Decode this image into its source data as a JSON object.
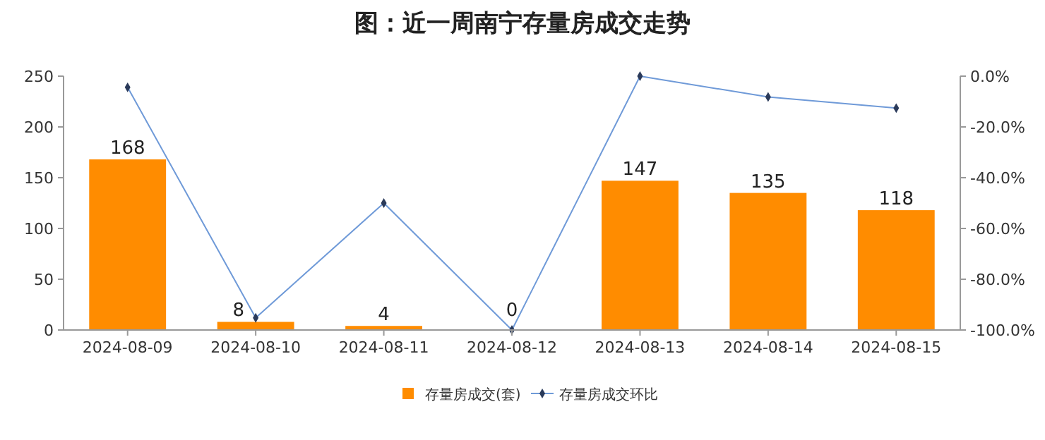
{
  "chart_data": {
    "type": "bar",
    "title": "图：近一周南宁存量房成交走势",
    "categories": [
      "2024-08-09",
      "2024-08-10",
      "2024-08-11",
      "2024-08-12",
      "2024-08-13",
      "2024-08-14",
      "2024-08-15"
    ],
    "series": [
      {
        "name": "存量房成交(套)",
        "color": "#ff8c00",
        "values": [
          168,
          8,
          4,
          0,
          147,
          135,
          118
        ],
        "value_labels": [
          "168",
          "8",
          "4",
          "0",
          "147",
          "135",
          "118"
        ]
      },
      {
        "name": "存量房成交环比",
        "type": "line",
        "axis": "y2",
        "color": "#6f9ad8",
        "values": [
          -4.4,
          -95.2,
          -50,
          -100,
          0,
          -8.2,
          -12.6
        ],
        "marker": "diamond"
      }
    ],
    "ylim": [
      0,
      250
    ],
    "yticks": [
      0,
      50,
      100,
      150,
      200,
      250
    ],
    "y2lim": [
      -100,
      0
    ],
    "y2ticks": [
      {
        "value": 0,
        "label": "0.0%"
      },
      {
        "value": -20,
        "label": "-20.0%"
      },
      {
        "value": -40,
        "label": "-40.0%"
      },
      {
        "value": -60,
        "label": "-60.0%"
      },
      {
        "value": -80,
        "label": "-80.0%"
      },
      {
        "value": -100,
        "label": "-100.0%"
      }
    ],
    "legend": "bottom",
    "grid": false
  }
}
